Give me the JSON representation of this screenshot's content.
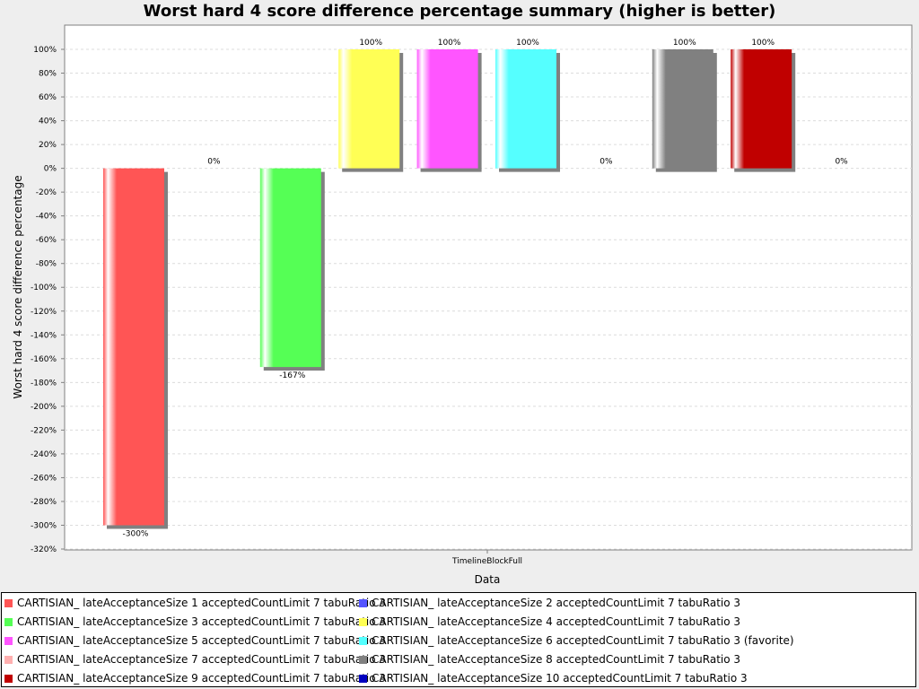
{
  "chart_data": {
    "type": "bar",
    "title": "Worst hard 4 score difference percentage summary (higher is better)",
    "xlabel": "Data",
    "ylabel": "Worst hard 4 score difference percentage",
    "categories": [
      "TimelineBlockFull"
    ],
    "ylim": [
      -320,
      100
    ],
    "ytick_step": 20,
    "grid": true,
    "legend_position": "bottom",
    "series": [
      {
        "name": "CARTISIAN_ lateAcceptanceSize 1 acceptedCountLimit 7 tabuRatio 3",
        "color": "#ff5555",
        "value": -300,
        "label": "-300%"
      },
      {
        "name": "CARTISIAN_ lateAcceptanceSize 2 acceptedCountLimit 7 tabuRatio 3",
        "color": "#5555ff",
        "value": 0,
        "label": "0%"
      },
      {
        "name": "CARTISIAN_ lateAcceptanceSize 3 acceptedCountLimit 7 tabuRatio 3",
        "color": "#55ff55",
        "value": -167,
        "label": "-167%"
      },
      {
        "name": "CARTISIAN_ lateAcceptanceSize 4 acceptedCountLimit 7 tabuRatio 3",
        "color": "#ffff55",
        "value": 100,
        "label": "100%"
      },
      {
        "name": "CARTISIAN_ lateAcceptanceSize 5 acceptedCountLimit 7 tabuRatio 3",
        "color": "#ff55ff",
        "value": 100,
        "label": "100%"
      },
      {
        "name": "CARTISIAN_ lateAcceptanceSize 6 acceptedCountLimit 7 tabuRatio 3 (favorite)",
        "color": "#55ffff",
        "value": 100,
        "label": "100%"
      },
      {
        "name": "CARTISIAN_ lateAcceptanceSize 7 acceptedCountLimit 7 tabuRatio 3",
        "color": "#ffafaf",
        "value": 0,
        "label": "0%"
      },
      {
        "name": "CARTISIAN_ lateAcceptanceSize 8 acceptedCountLimit 7 tabuRatio 3",
        "color": "#808080",
        "value": 100,
        "label": "100%"
      },
      {
        "name": "CARTISIAN_ lateAcceptanceSize 9 acceptedCountLimit 7 tabuRatio 3",
        "color": "#c00000",
        "value": 100,
        "label": "100%"
      },
      {
        "name": "CARTISIAN_ lateAcceptanceSize 10 acceptedCountLimit 7 tabuRatio 3",
        "color": "#0000c0",
        "value": 0,
        "label": "0%"
      }
    ]
  }
}
